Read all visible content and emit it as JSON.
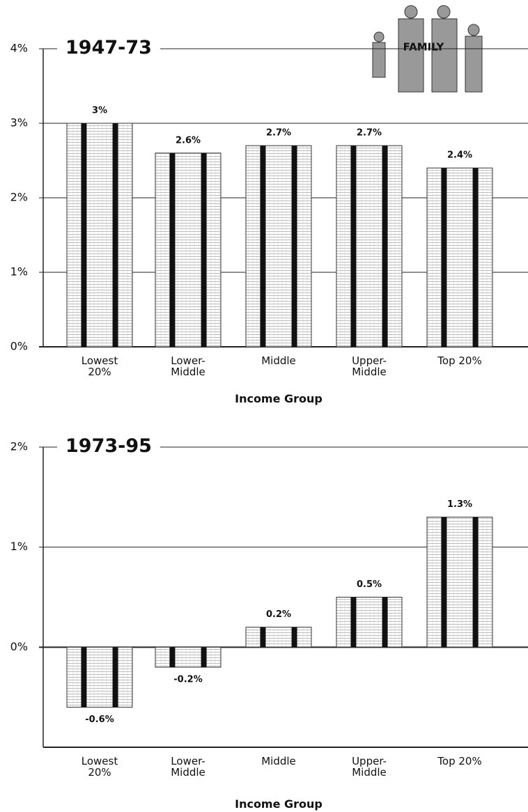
{
  "chart_data": [
    {
      "type": "bar",
      "title": "1947-73",
      "icon_label": "FAMILY",
      "xlabel": "Income Group",
      "categories": [
        "Lowest 20%",
        "Lower-Middle",
        "Middle",
        "Upper-Middle",
        "Top 20%"
      ],
      "values": [
        3,
        2.6,
        2.7,
        2.7,
        2.4
      ],
      "value_labels": [
        "3%",
        "2.6%",
        "2.7%",
        "2.7%",
        "2.4%"
      ],
      "color": "#bdbdbd",
      "ylim": [
        0,
        4
      ],
      "yticks": [
        {
          "value": 0,
          "label": "0%"
        },
        {
          "value": 1,
          "label": "1%"
        },
        {
          "value": 2,
          "label": "2%"
        },
        {
          "value": 3,
          "label": "3%"
        },
        {
          "value": 4,
          "label": "4%"
        }
      ],
      "grid": true
    },
    {
      "type": "bar",
      "title": "1973-95",
      "xlabel": "Income Group",
      "categories": [
        "Lowest 20%",
        "Lower-Middle",
        "Middle",
        "Upper-Middle",
        "Top 20%"
      ],
      "values": [
        -0.6,
        -0.2,
        0.2,
        0.5,
        1.3
      ],
      "value_labels": [
        "-0.6%",
        "-0.2%",
        "0.2%",
        "0.5%",
        "1.3%"
      ],
      "color": "#bdbdbd",
      "ylim": [
        -1,
        2
      ],
      "yticks": [
        {
          "value": 0,
          "label": "0%"
        },
        {
          "value": 1,
          "label": "1%"
        },
        {
          "value": 2,
          "label": "2%"
        }
      ],
      "grid": true
    }
  ]
}
